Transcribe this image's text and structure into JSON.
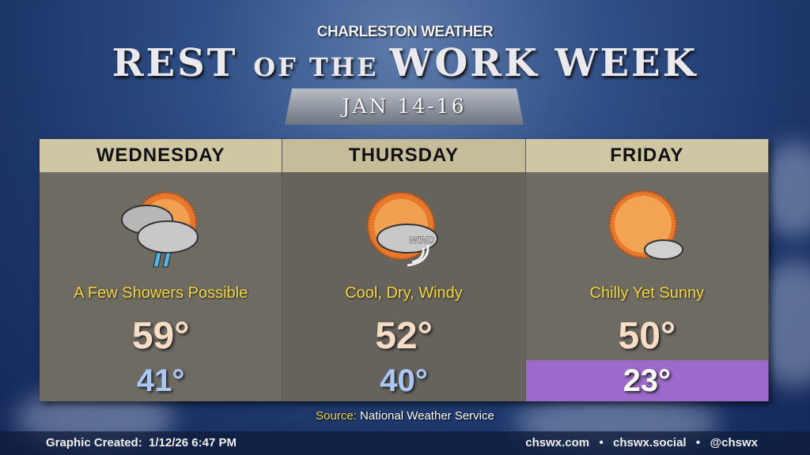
{
  "header": {
    "supertitle": "CHARLESTON WEATHER",
    "title_a": "REST ",
    "title_b": "OF THE ",
    "title_c": "WORK WEEK",
    "dates": "JAN 14-16"
  },
  "days": [
    {
      "name": "WEDNESDAY",
      "icon": "sun-clouds-showers-icon",
      "condition": "A Few Showers Possible",
      "high": "59°",
      "low": "41°"
    },
    {
      "name": "THURSDAY",
      "icon": "sun-cloud-wind-icon",
      "condition": "Cool, Dry, Windy",
      "high": "52°",
      "low": "40°",
      "wind_label": "WIND"
    },
    {
      "name": "FRIDAY",
      "icon": "sun-small-cloud-icon",
      "condition": "Chilly Yet Sunny",
      "high": "50°",
      "low": "23°"
    }
  ],
  "colors": {
    "cold_low_highlight": "#9c6acb",
    "condition_text": "#f2d53a"
  },
  "source": {
    "label": "Source:",
    "value": "National Weather Service"
  },
  "footer": {
    "created_label": "Graphic Created:",
    "created_value": "1/12/26 6:47 PM",
    "links": "chswx.com  •  chswx.social  •  @chswx"
  }
}
